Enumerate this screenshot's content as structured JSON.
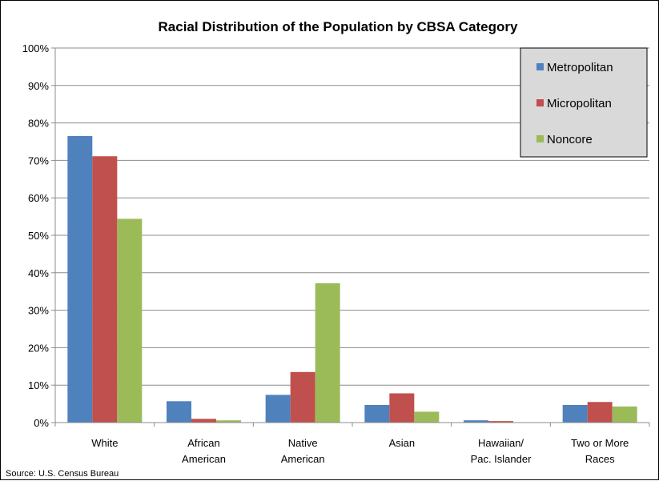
{
  "chart_data": {
    "type": "bar",
    "title": "Racial Distribution of the Population by CBSA Category",
    "categories": [
      [
        "White"
      ],
      [
        "African",
        "American"
      ],
      [
        "Native",
        "American"
      ],
      [
        "Asian"
      ],
      [
        "Hawaiian/",
        "Pac. Islander"
      ],
      [
        "Two or More",
        "Races"
      ]
    ],
    "series": [
      {
        "name": "Metropolitan",
        "color": "#4f81bd",
        "values": [
          76.5,
          5.7,
          7.4,
          4.7,
          0.6,
          4.7
        ]
      },
      {
        "name": "Micropolitan",
        "color": "#c0504d",
        "values": [
          71.1,
          1.0,
          13.5,
          7.8,
          0.4,
          5.5
        ]
      },
      {
        "name": "Noncore",
        "color": "#9bbb59",
        "values": [
          54.4,
          0.6,
          37.2,
          2.9,
          0.1,
          4.3
        ]
      }
    ],
    "ylim": [
      0,
      100
    ],
    "ytick_step": 10,
    "ytick_suffix": "%",
    "grid": true,
    "legend_position": "top-right",
    "legend_background": "#d9d9d9"
  },
  "source": "Source: U.S. Census Bureau"
}
